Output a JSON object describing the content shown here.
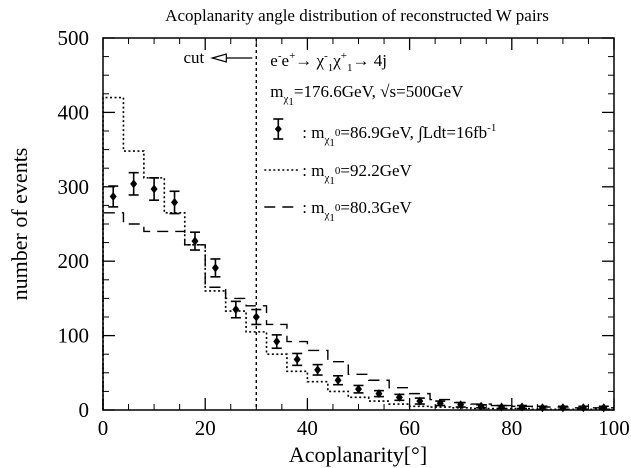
{
  "chart_data": {
    "type": "line",
    "title": "Acoplanarity angle distribution of reconstructed W pairs",
    "xlabel": "Acoplanarity[°]",
    "ylabel": "number of events",
    "xlim": [
      0,
      100
    ],
    "ylim": [
      0,
      500
    ],
    "xticks": [
      "0",
      "20",
      "40",
      "60",
      "80",
      "100"
    ],
    "yticks": [
      "0",
      "100",
      "200",
      "300",
      "400",
      "500"
    ],
    "bin_edges": [
      0,
      4,
      8,
      12,
      16,
      20,
      24,
      28,
      32,
      36,
      40,
      44,
      48,
      52,
      56,
      60,
      64,
      68,
      72,
      76,
      80,
      84,
      88,
      92,
      96,
      100
    ],
    "cut": {
      "x": 30,
      "label": "cut"
    },
    "annotations": {
      "process": {
        "main": "e",
        "s1": "-",
        "t1": "e",
        "s2": "+",
        "t2": "→ χ",
        "s3": "-",
        "sub3": "1",
        "t3": "χ",
        "s4": "+",
        "sub4": "1",
        "t4": "→ 4j"
      },
      "params": {
        "m": "m",
        "sub": "χ",
        "subsub": "1",
        "rest": "=176.6GeV, √s=500GeV"
      }
    },
    "series": [
      {
        "name": "data",
        "legend": {
          "pre": ": m",
          "sub": "χ",
          "subsub": "1",
          "sup": "0",
          "mid": "=86.9GeV, ∫Ldt=16fb",
          "sup2": "-1"
        },
        "style": "points",
        "x": [
          2,
          6,
          10,
          14,
          18,
          22,
          26,
          30,
          34,
          38,
          42,
          46,
          50,
          54,
          58,
          62,
          66,
          70,
          74,
          78,
          82,
          86,
          90,
          94,
          98
        ],
        "y": [
          287,
          304,
          297,
          279,
          227,
          191,
          135,
          125,
          92,
          68,
          54,
          40,
          28,
          22,
          17,
          12,
          9,
          7,
          5,
          4,
          4,
          3,
          3,
          3,
          3
        ],
        "err": [
          14,
          15,
          15,
          15,
          12,
          12,
          11,
          10,
          9,
          8,
          7,
          6,
          5,
          4,
          4,
          4,
          3,
          3,
          2,
          2,
          2,
          2,
          2,
          2,
          2
        ]
      },
      {
        "name": "dotted",
        "legend": {
          "pre": ": m",
          "sub": "χ",
          "subsub": "1",
          "sup": "0",
          "mid": "=92.2GeV",
          "sup2": ""
        },
        "style": "dotted",
        "y": [
          420,
          348,
          312,
          265,
          222,
          160,
          133,
          105,
          75,
          52,
          38,
          25,
          17,
          12,
          8,
          5,
          4,
          3,
          2,
          2,
          2,
          1,
          1,
          1,
          1
        ]
      },
      {
        "name": "dashed",
        "legend": {
          "pre": ": m",
          "sub": "χ",
          "subsub": "1",
          "sup": "0",
          "mid": "=80.3GeV",
          "sup2": ""
        },
        "style": "dashed",
        "y": [
          265,
          250,
          240,
          240,
          222,
          165,
          150,
          140,
          115,
          92,
          80,
          65,
          48,
          40,
          30,
          22,
          14,
          10,
          8,
          6,
          5,
          4,
          4,
          3,
          3
        ]
      }
    ]
  }
}
